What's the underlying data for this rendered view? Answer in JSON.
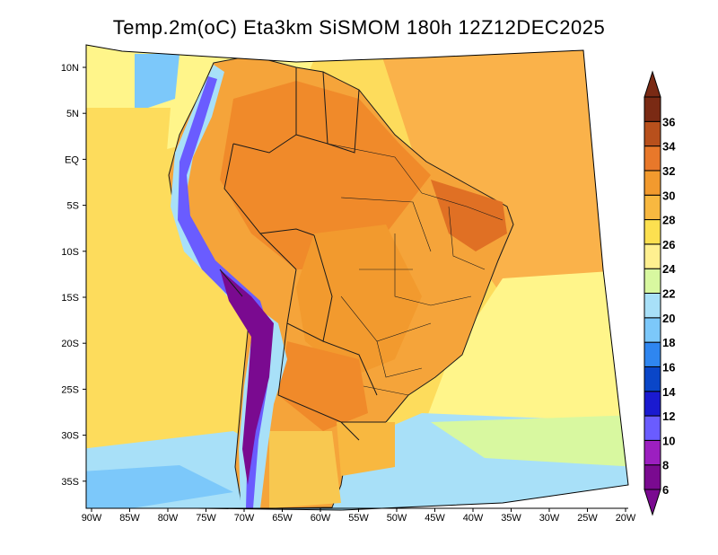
{
  "title": "Temp.2m(oC) Eta3km SiSMOM 180h 12Z12DEC2025",
  "latitude_labels": [
    "10N",
    "5N",
    "EQ",
    "5S",
    "10S",
    "15S",
    "20S",
    "25S",
    "30S",
    "35S"
  ],
  "longitude_labels": [
    "90W",
    "85W",
    "80W",
    "75W",
    "70W",
    "65W",
    "60W",
    "55W",
    "50W",
    "45W",
    "40W",
    "35W",
    "30W",
    "25W",
    "20W"
  ],
  "colorbar": {
    "labels": [
      "6",
      "8",
      "10",
      "12",
      "14",
      "16",
      "18",
      "20",
      "22",
      "24",
      "26",
      "28",
      "30",
      "32",
      "34",
      "36"
    ],
    "colors": [
      "#7a0a90",
      "#9c1fc0",
      "#6a5cff",
      "#1a1ad0",
      "#0a46c8",
      "#2f86f0",
      "#7cc8fa",
      "#a8e0f8",
      "#d8f8a0",
      "#fff090",
      "#fce050",
      "#f8b840",
      "#f29a2e",
      "#e8782a",
      "#b8501c",
      "#7a2a14"
    ]
  },
  "palette": {
    "ocean_warm": "#fab24a",
    "ocean_mid": "#fddc5c",
    "ocean_cool": "#fff58a",
    "land_hot": "#f08a2a",
    "cold_coast": "#7cc8fa",
    "andes_cold": "#7a0a90",
    "border": "#1a1a1a"
  }
}
